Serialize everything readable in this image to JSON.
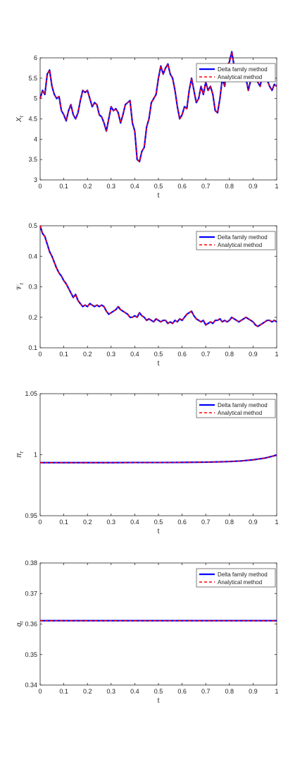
{
  "colors": {
    "delta": "#0000ff",
    "analytical": "#ff0000",
    "axis": "#262626"
  },
  "chart_data": [
    {
      "type": "line",
      "xlabel": "t",
      "ylabel": "X_t",
      "xlim": [
        0,
        1
      ],
      "ylim": [
        3,
        6
      ],
      "xticks": [
        "0",
        "0.1",
        "0.2",
        "0.3",
        "0.4",
        "0.5",
        "0.6",
        "0.7",
        "0.8",
        "0.9",
        "1"
      ],
      "yticks": [
        "3",
        "3.5",
        "4",
        "4.5",
        "5",
        "5.5",
        "6"
      ],
      "legend": [
        "Delta family method",
        "Analytical method"
      ],
      "legend_position": "top-right",
      "grid": false,
      "x": [
        0,
        0.01,
        0.02,
        0.03,
        0.04,
        0.05,
        0.06,
        0.07,
        0.08,
        0.09,
        0.1,
        0.11,
        0.12,
        0.13,
        0.14,
        0.15,
        0.16,
        0.17,
        0.18,
        0.19,
        0.2,
        0.21,
        0.22,
        0.23,
        0.24,
        0.25,
        0.26,
        0.27,
        0.28,
        0.29,
        0.3,
        0.31,
        0.32,
        0.33,
        0.34,
        0.35,
        0.36,
        0.37,
        0.38,
        0.39,
        0.4,
        0.41,
        0.42,
        0.43,
        0.44,
        0.45,
        0.46,
        0.47,
        0.48,
        0.49,
        0.5,
        0.51,
        0.52,
        0.53,
        0.54,
        0.55,
        0.56,
        0.57,
        0.58,
        0.59,
        0.6,
        0.61,
        0.62,
        0.63,
        0.64,
        0.65,
        0.66,
        0.67,
        0.68,
        0.69,
        0.7,
        0.71,
        0.72,
        0.73,
        0.74,
        0.75,
        0.76,
        0.77,
        0.78,
        0.79,
        0.8,
        0.81,
        0.82,
        0.83,
        0.84,
        0.85,
        0.86,
        0.87,
        0.88,
        0.89,
        0.9,
        0.91,
        0.92,
        0.93,
        0.94,
        0.95,
        0.96,
        0.97,
        0.98,
        0.99,
        1
      ],
      "series": [
        {
          "name": "Delta family method",
          "values": [
            5.0,
            5.2,
            5.1,
            5.6,
            5.7,
            5.3,
            5.1,
            5.0,
            5.05,
            4.7,
            4.6,
            4.45,
            4.7,
            4.85,
            4.6,
            4.5,
            4.65,
            4.95,
            5.2,
            5.15,
            5.2,
            5.0,
            4.8,
            4.9,
            4.85,
            4.6,
            4.55,
            4.4,
            4.2,
            4.5,
            4.8,
            4.7,
            4.75,
            4.65,
            4.4,
            4.6,
            4.85,
            4.9,
            4.95,
            4.4,
            4.2,
            3.5,
            3.45,
            3.7,
            3.8,
            4.3,
            4.5,
            4.9,
            5.0,
            5.1,
            5.5,
            5.8,
            5.6,
            5.75,
            5.85,
            5.6,
            5.5,
            5.2,
            4.8,
            4.5,
            4.6,
            4.8,
            4.75,
            5.2,
            5.5,
            5.2,
            4.9,
            5.0,
            5.3,
            5.1,
            5.4,
            5.2,
            5.3,
            5.1,
            4.7,
            4.65,
            5.0,
            5.5,
            5.3,
            5.8,
            5.9,
            6.15,
            5.8,
            5.5,
            5.55,
            5.6,
            5.6,
            5.5,
            5.2,
            5.45,
            5.7,
            5.5,
            5.4,
            5.3,
            5.6,
            5.5,
            5.45,
            5.3,
            5.2,
            5.35,
            5.3
          ]
        },
        {
          "name": "Analytical method",
          "values": [
            5.0,
            5.2,
            5.1,
            5.6,
            5.7,
            5.3,
            5.1,
            5.0,
            5.05,
            4.7,
            4.6,
            4.45,
            4.7,
            4.85,
            4.6,
            4.5,
            4.65,
            4.95,
            5.2,
            5.15,
            5.2,
            5.0,
            4.8,
            4.9,
            4.85,
            4.6,
            4.55,
            4.4,
            4.2,
            4.5,
            4.8,
            4.7,
            4.75,
            4.65,
            4.4,
            4.6,
            4.85,
            4.9,
            4.95,
            4.4,
            4.2,
            3.5,
            3.45,
            3.7,
            3.8,
            4.3,
            4.5,
            4.9,
            5.0,
            5.1,
            5.5,
            5.8,
            5.6,
            5.75,
            5.85,
            5.6,
            5.5,
            5.2,
            4.8,
            4.5,
            4.6,
            4.8,
            4.75,
            5.2,
            5.5,
            5.2,
            4.9,
            5.0,
            5.3,
            5.1,
            5.4,
            5.2,
            5.3,
            5.1,
            4.7,
            4.65,
            5.0,
            5.5,
            5.3,
            5.8,
            5.9,
            6.15,
            5.8,
            5.5,
            5.55,
            5.6,
            5.6,
            5.5,
            5.2,
            5.45,
            5.7,
            5.5,
            5.4,
            5.3,
            5.6,
            5.5,
            5.45,
            5.3,
            5.2,
            5.35,
            5.3
          ]
        }
      ]
    },
    {
      "type": "line",
      "xlabel": "t",
      "ylabel": "V_t",
      "xlim": [
        0,
        1
      ],
      "ylim": [
        0.1,
        0.5
      ],
      "xticks": [
        "0",
        "0.1",
        "0.2",
        "0.3",
        "0.4",
        "0.5",
        "0.6",
        "0.7",
        "0.8",
        "0.9",
        "1"
      ],
      "yticks": [
        "0.1",
        "0.2",
        "0.3",
        "0.4",
        "0.5"
      ],
      "legend": [
        "Delta family method",
        "Analytical method"
      ],
      "legend_position": "top-right",
      "grid": false,
      "x": [
        0,
        0.01,
        0.02,
        0.03,
        0.04,
        0.05,
        0.06,
        0.07,
        0.08,
        0.09,
        0.1,
        0.11,
        0.12,
        0.13,
        0.14,
        0.15,
        0.16,
        0.17,
        0.18,
        0.19,
        0.2,
        0.21,
        0.22,
        0.23,
        0.24,
        0.25,
        0.26,
        0.27,
        0.28,
        0.29,
        0.3,
        0.31,
        0.32,
        0.33,
        0.34,
        0.35,
        0.36,
        0.37,
        0.38,
        0.39,
        0.4,
        0.41,
        0.42,
        0.43,
        0.44,
        0.45,
        0.46,
        0.47,
        0.48,
        0.49,
        0.5,
        0.51,
        0.52,
        0.53,
        0.54,
        0.55,
        0.56,
        0.57,
        0.58,
        0.59,
        0.6,
        0.61,
        0.62,
        0.63,
        0.64,
        0.65,
        0.66,
        0.67,
        0.68,
        0.69,
        0.7,
        0.71,
        0.72,
        0.73,
        0.74,
        0.75,
        0.76,
        0.77,
        0.78,
        0.79,
        0.8,
        0.81,
        0.82,
        0.83,
        0.84,
        0.85,
        0.86,
        0.87,
        0.88,
        0.89,
        0.9,
        0.91,
        0.92,
        0.93,
        0.94,
        0.95,
        0.96,
        0.97,
        0.98,
        0.99,
        1
      ],
      "series": [
        {
          "name": "Delta family method",
          "values": [
            0.5,
            0.475,
            0.465,
            0.44,
            0.415,
            0.4,
            0.38,
            0.36,
            0.345,
            0.335,
            0.32,
            0.31,
            0.295,
            0.28,
            0.265,
            0.275,
            0.255,
            0.245,
            0.235,
            0.24,
            0.235,
            0.245,
            0.24,
            0.235,
            0.24,
            0.235,
            0.24,
            0.235,
            0.22,
            0.21,
            0.215,
            0.22,
            0.225,
            0.235,
            0.225,
            0.22,
            0.215,
            0.21,
            0.2,
            0.2,
            0.205,
            0.2,
            0.215,
            0.205,
            0.2,
            0.19,
            0.195,
            0.19,
            0.185,
            0.195,
            0.19,
            0.185,
            0.19,
            0.19,
            0.18,
            0.185,
            0.18,
            0.19,
            0.185,
            0.195,
            0.19,
            0.2,
            0.21,
            0.215,
            0.22,
            0.205,
            0.195,
            0.19,
            0.185,
            0.19,
            0.175,
            0.18,
            0.185,
            0.18,
            0.19,
            0.19,
            0.195,
            0.185,
            0.19,
            0.185,
            0.19,
            0.2,
            0.195,
            0.19,
            0.185,
            0.19,
            0.195,
            0.2,
            0.195,
            0.19,
            0.185,
            0.175,
            0.17,
            0.175,
            0.18,
            0.185,
            0.19,
            0.19,
            0.185,
            0.19,
            0.185
          ]
        },
        {
          "name": "Analytical method",
          "values": [
            0.5,
            0.475,
            0.465,
            0.44,
            0.415,
            0.4,
            0.38,
            0.36,
            0.345,
            0.335,
            0.32,
            0.31,
            0.295,
            0.28,
            0.265,
            0.275,
            0.255,
            0.245,
            0.235,
            0.24,
            0.235,
            0.245,
            0.24,
            0.235,
            0.24,
            0.235,
            0.24,
            0.235,
            0.22,
            0.21,
            0.215,
            0.22,
            0.225,
            0.235,
            0.225,
            0.22,
            0.215,
            0.21,
            0.2,
            0.2,
            0.205,
            0.2,
            0.215,
            0.205,
            0.2,
            0.19,
            0.195,
            0.19,
            0.185,
            0.195,
            0.19,
            0.185,
            0.19,
            0.19,
            0.18,
            0.185,
            0.18,
            0.19,
            0.185,
            0.195,
            0.19,
            0.2,
            0.21,
            0.215,
            0.22,
            0.205,
            0.195,
            0.19,
            0.185,
            0.19,
            0.175,
            0.18,
            0.185,
            0.18,
            0.19,
            0.19,
            0.195,
            0.185,
            0.19,
            0.185,
            0.19,
            0.2,
            0.195,
            0.19,
            0.185,
            0.19,
            0.195,
            0.2,
            0.195,
            0.19,
            0.185,
            0.175,
            0.17,
            0.175,
            0.18,
            0.185,
            0.19,
            0.19,
            0.185,
            0.19,
            0.185
          ]
        }
      ]
    },
    {
      "type": "line",
      "xlabel": "t",
      "ylabel": "π_t",
      "xlim": [
        0,
        1
      ],
      "ylim": [
        0.95,
        1.05
      ],
      "xticks": [
        "0",
        "0.1",
        "0.2",
        "0.3",
        "0.4",
        "0.5",
        "0.6",
        "0.7",
        "0.8",
        "0.9",
        "1"
      ],
      "yticks": [
        "0.95",
        "1",
        "1.05"
      ],
      "legend": [
        "Delta family method",
        "Analytical method"
      ],
      "legend_position": "top-right",
      "grid": false,
      "x": [
        0,
        0.1,
        0.2,
        0.3,
        0.4,
        0.5,
        0.6,
        0.7,
        0.75,
        0.8,
        0.85,
        0.9,
        0.95,
        1
      ],
      "series": [
        {
          "name": "Delta family method",
          "values": [
            0.9935,
            0.9935,
            0.9935,
            0.9935,
            0.9936,
            0.9936,
            0.9937,
            0.9939,
            0.9941,
            0.9944,
            0.9949,
            0.9958,
            0.9972,
            0.9997
          ]
        },
        {
          "name": "Analytical method",
          "values": [
            0.9935,
            0.9935,
            0.9935,
            0.9935,
            0.9936,
            0.9936,
            0.9937,
            0.9939,
            0.9941,
            0.9944,
            0.9949,
            0.9958,
            0.9972,
            0.9997
          ]
        }
      ]
    },
    {
      "type": "line",
      "xlabel": "t",
      "ylabel": "q_t",
      "xlim": [
        0,
        1
      ],
      "ylim": [
        0.34,
        0.38
      ],
      "xticks": [
        "0",
        "0.1",
        "0.2",
        "0.3",
        "0.4",
        "0.5",
        "0.6",
        "0.7",
        "0.8",
        "0.9",
        "1"
      ],
      "yticks": [
        "0.34",
        "0.35",
        "0.36",
        "0.37",
        "0.38"
      ],
      "legend": [
        "Delta family method",
        "Analytical method"
      ],
      "legend_position": "top-right",
      "grid": false,
      "x": [
        0,
        0.1,
        0.2,
        0.3,
        0.4,
        0.5,
        0.6,
        0.7,
        0.8,
        0.9,
        1
      ],
      "series": [
        {
          "name": "Delta family method",
          "values": [
            0.3611,
            0.3611,
            0.3611,
            0.3611,
            0.3611,
            0.3611,
            0.3611,
            0.3611,
            0.3611,
            0.3611,
            0.3611
          ]
        },
        {
          "name": "Analytical method",
          "values": [
            0.3611,
            0.3611,
            0.3611,
            0.3611,
            0.3611,
            0.3611,
            0.3611,
            0.3611,
            0.3611,
            0.3611,
            0.3611
          ]
        }
      ]
    }
  ]
}
